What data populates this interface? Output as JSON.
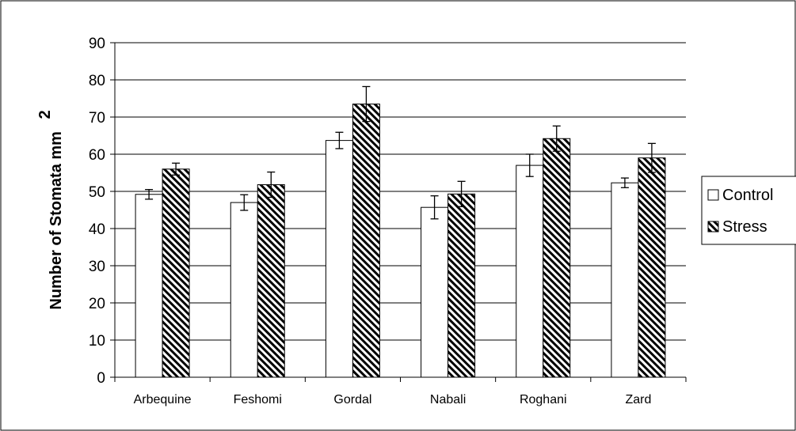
{
  "chart_data": {
    "type": "bar",
    "categories": [
      "Arbequine",
      "Feshomi",
      "Gordal",
      "Nabali",
      "Roghani",
      "Zard"
    ],
    "series": [
      {
        "name": "Control",
        "values": [
          49.2,
          47.0,
          63.7,
          45.7,
          57.0,
          52.3
        ],
        "errors": [
          1.3,
          2.1,
          2.2,
          3.1,
          3.0,
          1.3
        ],
        "fill": "#ffffff"
      },
      {
        "name": "Stress",
        "values": [
          56.0,
          51.8,
          73.5,
          49.3,
          64.2,
          59.0
        ],
        "errors": [
          1.6,
          3.4,
          4.7,
          3.4,
          3.4,
          3.9
        ],
        "fill": "hatched"
      }
    ],
    "ylabel": "Number of Stomata mm",
    "ylabel_superscript": "2",
    "xlabel": "",
    "ylim": [
      0,
      90
    ],
    "yticks": [
      0,
      10,
      20,
      30,
      40,
      50,
      60,
      70,
      80,
      90
    ],
    "grid": true,
    "legend_position": "right",
    "colors": {
      "bar_stroke": "#000000",
      "gridline": "#000000",
      "hatch_line": "#000000",
      "background": "#ffffff",
      "border": "#000000"
    }
  }
}
